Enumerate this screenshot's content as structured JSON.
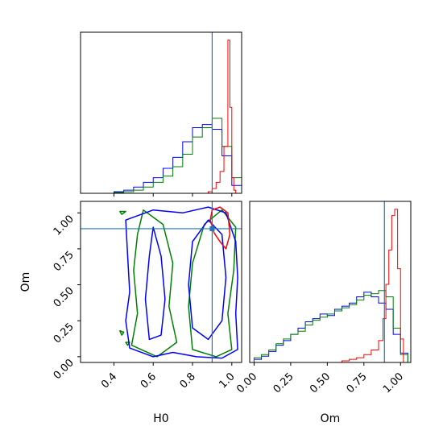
{
  "chart_data": {
    "type": "corner",
    "parameters": [
      "H0",
      "Om"
    ],
    "truth": {
      "H0": 0.9,
      "Om": 0.89
    },
    "truth_color": "#1f77b4",
    "series": [
      {
        "color": "#0000ff"
      },
      {
        "color": "#008000"
      },
      {
        "color": "#ff0000"
      }
    ],
    "axes": {
      "H0": {
        "range": [
          0.23,
          1.05
        ],
        "ticks": [
          "0.4",
          "0.6",
          "0.8",
          "1.0"
        ],
        "tick_values": [
          0.4,
          0.6,
          0.8,
          1.0
        ]
      },
      "Om": {
        "range": [
          -0.04,
          1.08
        ],
        "ticks": [
          "0.00",
          "0.25",
          "0.50",
          "0.75",
          "1.00"
        ],
        "tick_values": [
          0.0,
          0.25,
          0.5,
          0.75,
          1.0
        ]
      },
      "Om_marginal": {
        "range": [
          -0.03,
          1.07
        ]
      }
    },
    "hist_H0": {
      "blue": {
        "edges": [
          0.4,
          0.45,
          0.5,
          0.55,
          0.6,
          0.65,
          0.7,
          0.75,
          0.8,
          0.85,
          0.9,
          0.95,
          1.0,
          1.05
        ],
        "counts": [
          0.01,
          0.02,
          0.04,
          0.07,
          0.1,
          0.16,
          0.23,
          0.33,
          0.42,
          0.44,
          0.41,
          0.24,
          0.05
        ]
      },
      "green": {
        "edges": [
          0.4,
          0.45,
          0.5,
          0.55,
          0.6,
          0.65,
          0.7,
          0.75,
          0.8,
          0.85,
          0.9,
          0.95,
          1.0,
          1.05
        ],
        "counts": [
          0.005,
          0.01,
          0.02,
          0.04,
          0.07,
          0.11,
          0.17,
          0.25,
          0.36,
          0.42,
          0.48,
          0.3,
          0.1
        ]
      },
      "red": {
        "edges": [
          0.88,
          0.9,
          0.92,
          0.94,
          0.96,
          0.98,
          0.99,
          1.0,
          1.01,
          1.02
        ],
        "counts": [
          0.01,
          0.03,
          0.07,
          0.14,
          0.3,
          0.98,
          0.55,
          0.1,
          0.02
        ]
      }
    },
    "hist_Om": {
      "blue": {
        "edges": [
          0.0,
          0.05,
          0.1,
          0.15,
          0.2,
          0.25,
          0.3,
          0.35,
          0.4,
          0.45,
          0.5,
          0.55,
          0.6,
          0.65,
          0.7,
          0.75,
          0.8,
          0.85,
          0.9,
          0.95,
          1.0,
          1.05
        ],
        "counts": [
          0.02,
          0.04,
          0.07,
          0.11,
          0.14,
          0.18,
          0.22,
          0.26,
          0.28,
          0.31,
          0.3,
          0.34,
          0.36,
          0.38,
          0.42,
          0.45,
          0.42,
          0.38,
          0.34,
          0.18,
          0.06
        ]
      },
      "green": {
        "edges": [
          0.0,
          0.05,
          0.1,
          0.15,
          0.2,
          0.25,
          0.3,
          0.35,
          0.4,
          0.45,
          0.5,
          0.55,
          0.6,
          0.65,
          0.7,
          0.75,
          0.8,
          0.85,
          0.9,
          0.95,
          1.0,
          1.05
        ],
        "counts": [
          0.03,
          0.05,
          0.08,
          0.12,
          0.15,
          0.18,
          0.2,
          0.24,
          0.27,
          0.29,
          0.31,
          0.33,
          0.35,
          0.37,
          0.4,
          0.43,
          0.44,
          0.46,
          0.42,
          0.22,
          0.05
        ]
      },
      "red": {
        "edges": [
          0.6,
          0.65,
          0.7,
          0.75,
          0.8,
          0.85,
          0.88,
          0.9,
          0.92,
          0.94,
          0.96,
          0.98,
          1.0,
          1.02
        ],
        "counts": [
          0.01,
          0.02,
          0.03,
          0.05,
          0.08,
          0.14,
          0.28,
          0.5,
          0.72,
          0.94,
          0.98,
          0.6,
          0.15
        ]
      }
    },
    "contours": {
      "blue": [
        [
          [
            0.48,
            0.06
          ],
          [
            0.46,
            0.25
          ],
          [
            0.48,
            0.45
          ],
          [
            0.47,
            0.7
          ],
          [
            0.46,
            0.95
          ],
          [
            0.6,
            1.02
          ],
          [
            0.75,
            1.0
          ],
          [
            0.88,
            1.04
          ],
          [
            0.97,
            1.0
          ],
          [
            1.02,
            0.8
          ],
          [
            1.03,
            0.55
          ],
          [
            1.02,
            0.3
          ],
          [
            1.03,
            0.05
          ],
          [
            0.95,
            -0.01
          ],
          [
            0.82,
            0.0
          ],
          [
            0.7,
            0.03
          ],
          [
            0.6,
            0.0
          ]
        ],
        [
          [
            0.58,
            0.12
          ],
          [
            0.56,
            0.4
          ],
          [
            0.58,
            0.7
          ],
          [
            0.6,
            0.9
          ],
          [
            0.64,
            0.7
          ],
          [
            0.66,
            0.4
          ],
          [
            0.64,
            0.15
          ]
        ],
        [
          [
            0.8,
            0.2
          ],
          [
            0.78,
            0.5
          ],
          [
            0.8,
            0.8
          ],
          [
            0.88,
            0.95
          ],
          [
            0.95,
            0.85
          ],
          [
            0.97,
            0.55
          ],
          [
            0.95,
            0.25
          ],
          [
            0.88,
            0.12
          ]
        ]
      ],
      "green": [
        [
          [
            0.43,
            1.01
          ],
          [
            0.44,
            0.99
          ],
          [
            0.46,
            1.01
          ]
        ],
        [
          [
            0.49,
            0.08
          ],
          [
            0.52,
            0.3
          ],
          [
            0.5,
            0.6
          ],
          [
            0.52,
            0.85
          ],
          [
            0.55,
            1.02
          ],
          [
            0.65,
            0.92
          ],
          [
            0.7,
            0.65
          ],
          [
            0.68,
            0.35
          ],
          [
            0.72,
            0.1
          ],
          [
            0.62,
            0.0
          ]
        ],
        [
          [
            0.8,
            0.05
          ],
          [
            0.78,
            0.35
          ],
          [
            0.8,
            0.65
          ],
          [
            0.86,
            0.92
          ],
          [
            0.95,
            1.02
          ],
          [
            1.02,
            0.9
          ],
          [
            1.01,
            0.6
          ],
          [
            0.98,
            0.3
          ],
          [
            1.0,
            0.05
          ],
          [
            0.92,
            0.0
          ]
        ],
        [
          [
            0.43,
            0.18
          ],
          [
            0.44,
            0.15
          ],
          [
            0.45,
            0.17
          ]
        ],
        [
          [
            0.46,
            0.1
          ],
          [
            0.47,
            0.08
          ],
          [
            0.48,
            0.1
          ]
        ]
      ],
      "red": [
        [
          [
            0.9,
            1.02
          ],
          [
            0.89,
            0.95
          ],
          [
            0.91,
            0.86
          ],
          [
            0.94,
            0.8
          ],
          [
            0.97,
            0.75
          ],
          [
            0.99,
            0.85
          ],
          [
            0.98,
            1.0
          ],
          [
            0.94,
            1.04
          ]
        ]
      ]
    }
  }
}
